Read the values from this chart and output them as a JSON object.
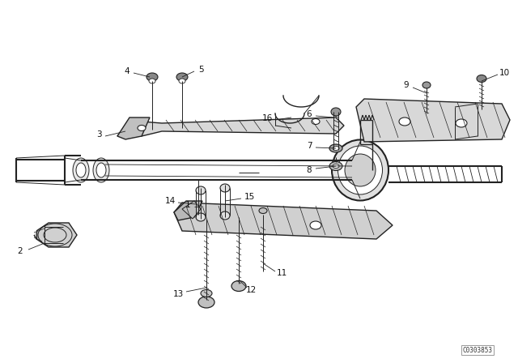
{
  "bg_color": "#ffffff",
  "fig_width": 6.4,
  "fig_height": 4.48,
  "dpi": 100,
  "diagram_code": "C0303853",
  "line_color": "#222222",
  "text_color": "#111111",
  "label_fontsize": 7.5
}
